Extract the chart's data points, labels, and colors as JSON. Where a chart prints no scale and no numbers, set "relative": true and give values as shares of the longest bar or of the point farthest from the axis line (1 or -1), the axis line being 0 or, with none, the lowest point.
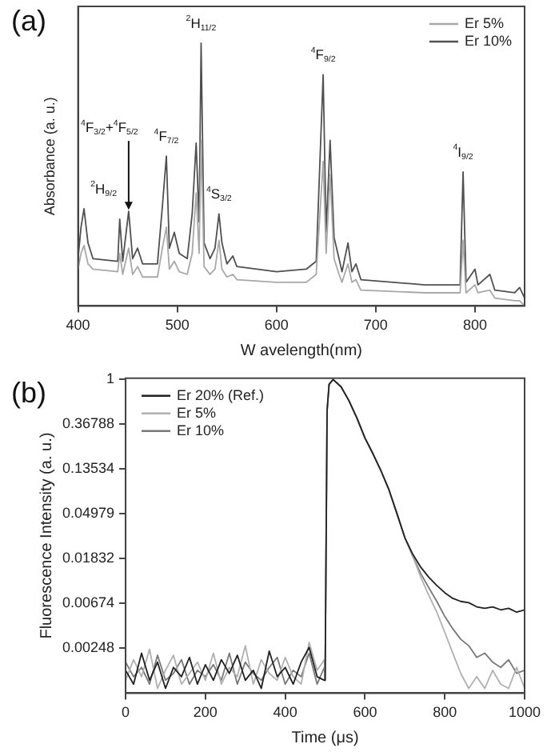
{
  "chart_data": [
    {
      "type": "line",
      "title": "(a)",
      "xlabel": "W avelength(nm)",
      "ylabel": "Absorbance (a. u.)",
      "relative": true,
      "xlim": [
        400,
        850
      ],
      "xticks": [
        400,
        500,
        600,
        700,
        800
      ],
      "tick_labels": "x",
      "legend": "top right",
      "series": [
        {
          "name": "Er 5%",
          "color": "#a8a8a8",
          "x": [
            400,
            403,
            406,
            410,
            415,
            440,
            442,
            445,
            451,
            455,
            460,
            465,
            480,
            485,
            489,
            492,
            497,
            502,
            510,
            515,
            519,
            522,
            524,
            527,
            533,
            538,
            542,
            545,
            550,
            556,
            560,
            600,
            630,
            640,
            647,
            650,
            654,
            658,
            663,
            666,
            672,
            676,
            680,
            685,
            750,
            785,
            788,
            791,
            800,
            803,
            815,
            820,
            840,
            845,
            850
          ],
          "values": [
            0.14,
            0.2,
            0.23,
            0.16,
            0.14,
            0.13,
            0.2,
            0.12,
            0.22,
            0.12,
            0.15,
            0.11,
            0.11,
            0.22,
            0.3,
            0.14,
            0.17,
            0.13,
            0.12,
            0.2,
            0.43,
            0.2,
            0.63,
            0.15,
            0.12,
            0.14,
            0.25,
            0.14,
            0.11,
            0.12,
            0.1,
            0.09,
            0.09,
            0.12,
            0.55,
            0.2,
            0.5,
            0.18,
            0.12,
            0.09,
            0.16,
            0.09,
            0.1,
            0.06,
            0.05,
            0.05,
            0.25,
            0.05,
            0.08,
            0.05,
            0.06,
            0.03,
            0.02,
            0.02,
            0.0
          ]
        },
        {
          "name": "Er 10%",
          "color": "#505050",
          "x": [
            400,
            403,
            406,
            410,
            415,
            440,
            442,
            445,
            451,
            455,
            460,
            465,
            480,
            485,
            489,
            492,
            497,
            502,
            510,
            515,
            519,
            522,
            524,
            527,
            533,
            538,
            542,
            545,
            550,
            556,
            560,
            600,
            630,
            640,
            647,
            650,
            654,
            658,
            663,
            666,
            672,
            676,
            680,
            685,
            750,
            785,
            788,
            791,
            800,
            803,
            815,
            820,
            840,
            845,
            850
          ],
          "values": [
            0.18,
            0.3,
            0.37,
            0.24,
            0.18,
            0.17,
            0.33,
            0.17,
            0.36,
            0.18,
            0.22,
            0.16,
            0.16,
            0.38,
            0.57,
            0.22,
            0.28,
            0.2,
            0.18,
            0.35,
            0.62,
            0.32,
            1.0,
            0.24,
            0.18,
            0.22,
            0.35,
            0.24,
            0.16,
            0.19,
            0.15,
            0.13,
            0.14,
            0.17,
            0.88,
            0.28,
            0.63,
            0.26,
            0.18,
            0.13,
            0.24,
            0.13,
            0.16,
            0.1,
            0.08,
            0.08,
            0.51,
            0.09,
            0.14,
            0.08,
            0.12,
            0.06,
            0.05,
            0.07,
            0.03
          ]
        }
      ],
      "annotations": [
        {
          "text": "$^{2}$H$_{9/2}$",
          "x": 406,
          "y": 0.37
        },
        {
          "text": "$^{4}$F$_{3/2}$+$^{4}$F$_{5/2}$",
          "x": 451,
          "y": 0.36
        },
        {
          "text": "$^{4}$F$_{7/2}$",
          "x": 489,
          "y": 0.57
        },
        {
          "text": "$^{2}$H$_{11/2}$",
          "x": 524,
          "y": 1.0
        },
        {
          "text": "$^{4}$S$_{3/2}$",
          "x": 542,
          "y": 0.35
        },
        {
          "text": "$^{4}$F$_{9/2}$",
          "x": 647,
          "y": 0.88
        },
        {
          "text": "$^{4}$I$_{9/2}$",
          "x": 788,
          "y": 0.51
        }
      ]
    },
    {
      "type": "line",
      "title": "(b)",
      "xlabel": "Time (μs)",
      "ylabel": "Fluorescence Intensity (a. u.)",
      "log": true,
      "xlim": [
        0,
        1000
      ],
      "xticks": [
        0,
        200,
        400,
        600,
        800,
        1000
      ],
      "ylim": [
        0.0009,
        1.03
      ],
      "yticks": [
        1,
        0.36788,
        0.13534,
        0.04979,
        0.01832,
        0.00674,
        0.00248
      ],
      "legend": "top left",
      "x": [
        0,
        20,
        40,
        60,
        80,
        100,
        120,
        140,
        160,
        180,
        200,
        220,
        240,
        260,
        280,
        300,
        320,
        340,
        360,
        380,
        400,
        420,
        440,
        460,
        480,
        498,
        500,
        505,
        510,
        520,
        540,
        560,
        580,
        600,
        620,
        640,
        660,
        680,
        700,
        720,
        740,
        760,
        780,
        800,
        820,
        840,
        860,
        880,
        900,
        920,
        940,
        960,
        980,
        1000
      ],
      "series": [
        {
          "name": "Er 20% (Ref.)",
          "color": "#202020",
          "values": [
            0.0015,
            0.0011,
            0.0022,
            0.0012,
            0.0018,
            0.001,
            0.0016,
            0.0013,
            0.002,
            0.0011,
            0.0017,
            0.0012,
            0.0019,
            0.0014,
            0.0021,
            0.0012,
            0.0015,
            0.001,
            0.0023,
            0.0013,
            0.0016,
            0.0011,
            0.0018,
            0.0025,
            0.0013,
            0.0012,
            0.0012,
            0.5,
            0.9,
            1,
            0.85,
            0.62,
            0.42,
            0.27,
            0.19,
            0.13,
            0.085,
            0.05,
            0.029,
            0.02,
            0.015,
            0.012,
            0.01,
            0.0085,
            0.0075,
            0.007,
            0.0068,
            0.0062,
            0.006,
            0.0062,
            0.0058,
            0.006,
            0.0055,
            0.0058
          ]
        },
        {
          "name": "Er 5%",
          "color": "#b0b0b0",
          "values": [
            0.0012,
            0.0019,
            0.0013,
            0.0024,
            0.001,
            0.0015,
            0.0021,
            0.0011,
            0.0014,
            0.0018,
            0.0012,
            0.0022,
            0.0011,
            0.0016,
            0.0013,
            0.0026,
            0.0011,
            0.0019,
            0.0014,
            0.0012,
            0.002,
            0.0013,
            0.0011,
            0.0028,
            0.0015,
            0.0019,
            0.0012,
            0.5,
            0.9,
            1,
            0.85,
            0.62,
            0.42,
            0.27,
            0.19,
            0.13,
            0.085,
            0.05,
            0.029,
            0.019,
            0.012,
            0.008,
            0.0055,
            0.0035,
            0.0022,
            0.0014,
            0.001,
            0.0013,
            0.001,
            0.0015,
            0.0011,
            0.001,
            0.0016,
            0.001
          ]
        },
        {
          "name": "Er 10%",
          "color": "#787878",
          "values": [
            0.0018,
            0.0013,
            0.0016,
            0.0011,
            0.0021,
            0.0012,
            0.0014,
            0.0019,
            0.0011,
            0.0015,
            0.0013,
            0.0017,
            0.0012,
            0.0022,
            0.0011,
            0.0018,
            0.0014,
            0.0012,
            0.0016,
            0.002,
            0.0011,
            0.0015,
            0.0013,
            0.0022,
            0.0011,
            0.0016,
            0.0012,
            0.5,
            0.9,
            1,
            0.85,
            0.62,
            0.42,
            0.27,
            0.19,
            0.13,
            0.085,
            0.05,
            0.029,
            0.019,
            0.013,
            0.0095,
            0.007,
            0.005,
            0.0038,
            0.003,
            0.0026,
            0.002,
            0.0022,
            0.0018,
            0.0016,
            0.0019,
            0.0014,
            0.0015
          ]
        }
      ]
    }
  ]
}
